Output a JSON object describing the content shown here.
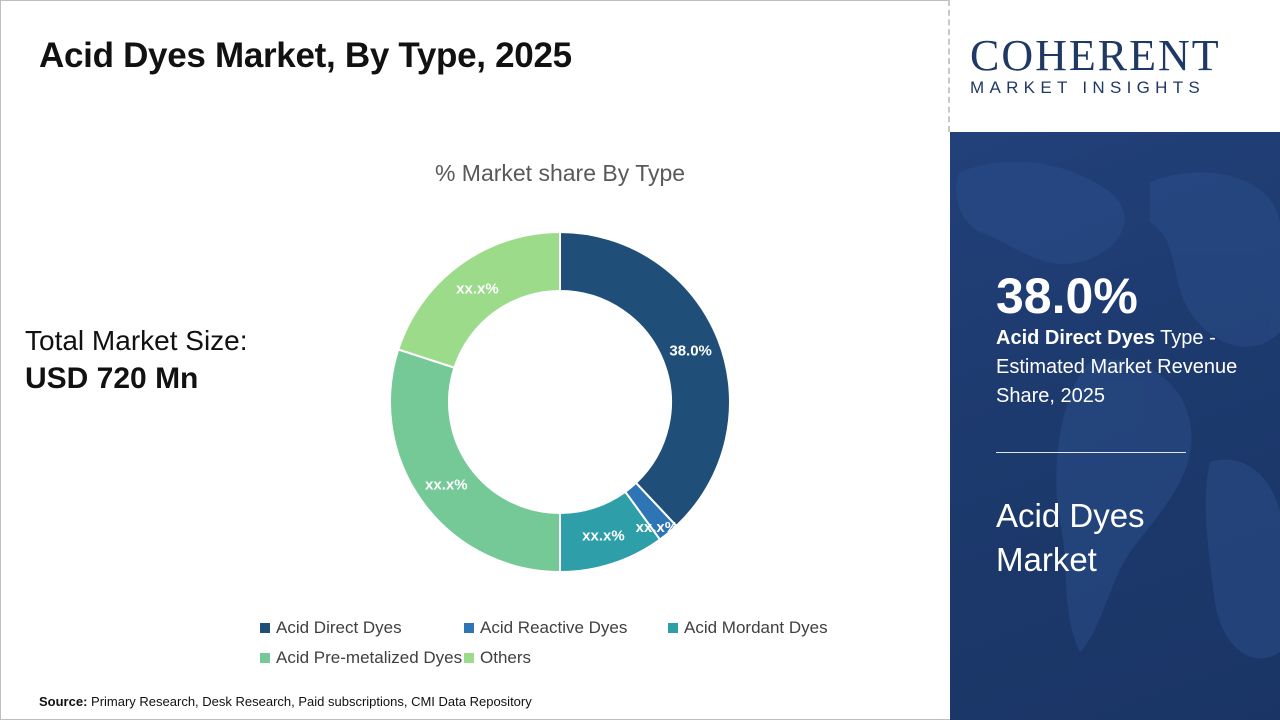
{
  "title": "Acid Dyes Market, By Type, 2025",
  "total_market": {
    "label": "Total Market Size:",
    "value": "USD 720 Mn"
  },
  "source": {
    "label": "Source:",
    "text": "Primary Research, Desk Research, Paid subscriptions, CMI Data Repository"
  },
  "logo": {
    "main": "COHERENT",
    "sub": "MARKET INSIGHTS"
  },
  "highlight": {
    "percent": "38.0%",
    "segment": "Acid Direct Dyes",
    "text_suffix": " Type - Estimated Market Revenue Share, 2025",
    "market_name": "Acid Dyes Market"
  },
  "colors": {
    "acid_direct": "#1f4e79",
    "acid_reactive": "#2e75b6",
    "acid_mordant": "#2e9ea8",
    "acid_premetalized": "#74c997",
    "others": "#9bdb8a",
    "panel": "#1d3a6e"
  },
  "chart_data": {
    "type": "pie",
    "donut": true,
    "title": "% Market share By Type",
    "categories": [
      "Acid Direct Dyes",
      "Acid Reactive Dyes",
      "Acid Mordant Dyes",
      "Acid Pre-metalized Dyes",
      "Others"
    ],
    "values": [
      38.0,
      2.0,
      10.0,
      30.0,
      20.0
    ],
    "data_labels": [
      "38.0%",
      "xx.x%",
      "xx.x%",
      "xx.x%",
      "xx.x%"
    ],
    "colors": [
      "#1f4e79",
      "#2e75b6",
      "#2e9ea8",
      "#74c997",
      "#9bdb8a"
    ],
    "legend_position": "bottom"
  }
}
